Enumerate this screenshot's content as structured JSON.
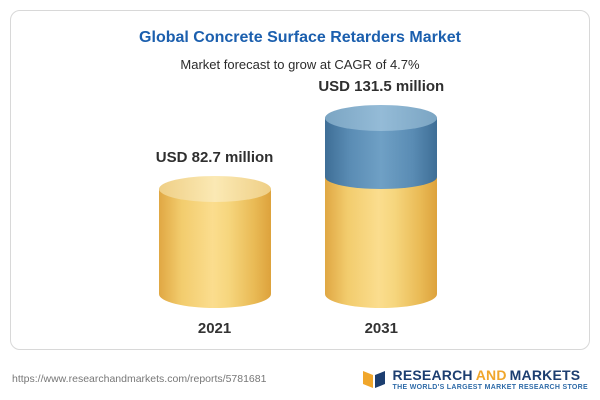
{
  "chart_data": {
    "type": "bar",
    "title": "Global Concrete Surface Retarders Market",
    "subtitle": "Market forecast to grow at CAGR of 4.7%",
    "categories": [
      "2021",
      "2031"
    ],
    "values": [
      82.7,
      131.5
    ],
    "unit": "USD million",
    "value_labels": [
      "USD 82.7 million",
      "USD 131.5 million"
    ],
    "ylim": [
      0,
      140
    ],
    "grid": false,
    "legend": "none",
    "colors": {
      "bar_2021": "#F5CE6E",
      "bar_2031_base": "#F5CE6E",
      "bar_2031_growth": "#5E90B8",
      "title_text": "#1B5FAE"
    }
  },
  "footer": {
    "url": "https://www.researchandmarkets.com/reports/5781681",
    "logo": {
      "word1": "RESEARCH",
      "word2": "AND",
      "word3": "MARKETS",
      "tagline": "THE WORLD'S LARGEST MARKET RESEARCH STORE"
    }
  }
}
